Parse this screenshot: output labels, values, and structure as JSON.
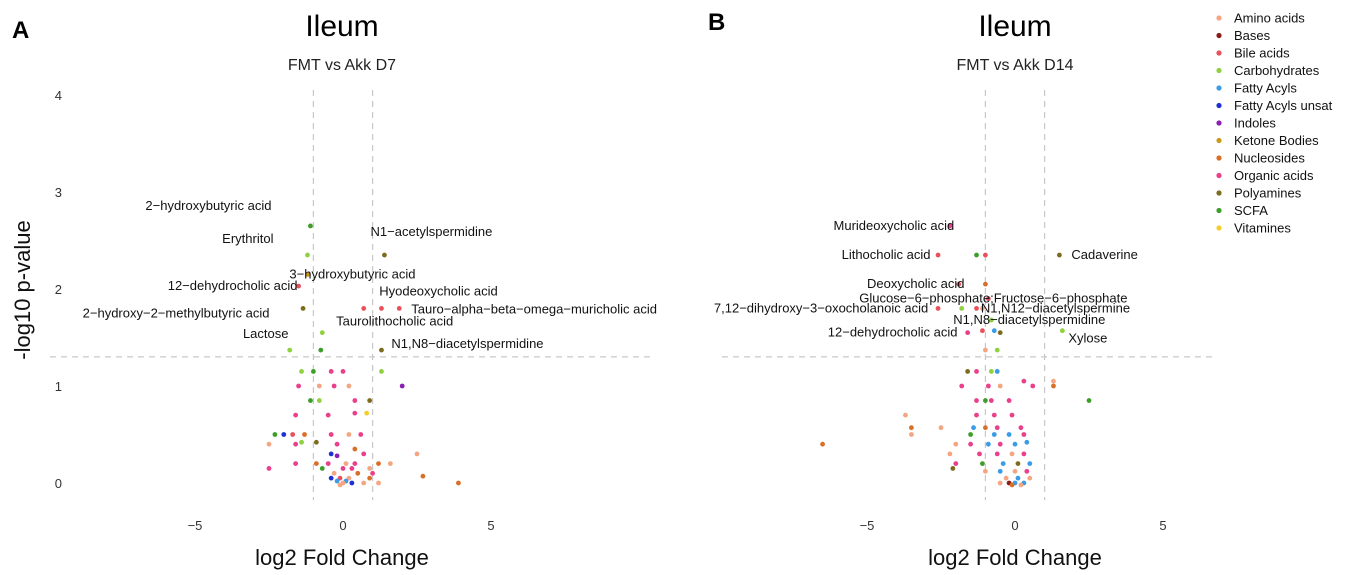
{
  "legend": [
    {
      "name": "Amino acids",
      "color": "#f4a582"
    },
    {
      "name": "Bases",
      "color": "#8b1a1a"
    },
    {
      "name": "Bile acids",
      "color": "#e8505b"
    },
    {
      "name": "Carbohydrates",
      "color": "#8fd13f"
    },
    {
      "name": "Fatty Acyls",
      "color": "#3a9be6"
    },
    {
      "name": "Fatty Acyls unsat",
      "color": "#1f2fd6"
    },
    {
      "name": "Indoles",
      "color": "#8a1fb5"
    },
    {
      "name": "Ketone Bodies",
      "color": "#c99a1c"
    },
    {
      "name": "Nucleosides",
      "color": "#d9702a"
    },
    {
      "name": "Organic acids",
      "color": "#ea3f8b"
    },
    {
      "name": "Polyamines",
      "color": "#7c6c1d"
    },
    {
      "name": "SCFA",
      "color": "#3e9e2a"
    },
    {
      "name": "Vitamines",
      "color": "#f2cf2a"
    }
  ],
  "chart_data": [
    {
      "panel": "A",
      "type": "scatter",
      "title": "Ileum",
      "subtitle": "FMT vs Akk D7",
      "xlabel": "log2 Fold Change",
      "ylabel": "-log10 p-value",
      "xlim": [
        -10,
        10
      ],
      "ylim": [
        -0.2,
        4.2
      ],
      "xticks": [
        -5,
        0,
        5
      ],
      "yticks": [
        0,
        1,
        2,
        3,
        4
      ],
      "vlines": [
        -1,
        1
      ],
      "hline": 1.3,
      "points": [
        {
          "x": -1.1,
          "y": 2.65,
          "c": "SCFA",
          "label": "2-hydroxybutyric acid"
        },
        {
          "x": -1.2,
          "y": 2.35,
          "c": "Carbohydrates",
          "label": "Erythritol"
        },
        {
          "x": -1.2,
          "y": 2.15,
          "c": "Ketone Bodies",
          "label": "3-hydroxybutyric acid"
        },
        {
          "x": -1.5,
          "y": 2.03,
          "c": "Bile acids",
          "label": "12-dehydrocholic acid"
        },
        {
          "x": -1.35,
          "y": 1.8,
          "c": "Polyamines",
          "label": "2-hydroxy-2-methylbutyric acid"
        },
        {
          "x": -1.8,
          "y": 1.37,
          "c": "Carbohydrates",
          "label": "Lactose"
        },
        {
          "x": 1.4,
          "y": 2.35,
          "c": "Polyamines",
          "label": "N1-acetylspermidine"
        },
        {
          "x": 1.3,
          "y": 1.8,
          "c": "Bile acids",
          "label": "Hyodeoxycholic acid"
        },
        {
          "x": 1.9,
          "y": 1.8,
          "c": "Bile acids",
          "label": "Tauro-alpha-beta-omega-muricholic acid"
        },
        {
          "x": 0.7,
          "y": 1.8,
          "c": "Bile acids",
          "label": "Taurolithocholic acid"
        },
        {
          "x": 1.3,
          "y": 1.37,
          "c": "Polyamines",
          "label": "N1,N8-diacetylspermidine"
        },
        {
          "x": -0.7,
          "y": 1.55,
          "c": "Carbohydrates"
        },
        {
          "x": -0.75,
          "y": 1.37,
          "c": "SCFA"
        },
        {
          "x": 2.0,
          "y": 1.0,
          "c": "Indoles"
        },
        {
          "x": -1.4,
          "y": 1.15,
          "c": "Carbohydrates"
        },
        {
          "x": -1.0,
          "y": 1.15,
          "c": "SCFA"
        },
        {
          "x": -0.4,
          "y": 1.15,
          "c": "Organic acids"
        },
        {
          "x": 0.0,
          "y": 1.15,
          "c": "Organic acids"
        },
        {
          "x": 1.3,
          "y": 1.15,
          "c": "Carbohydrates"
        },
        {
          "x": -1.5,
          "y": 1.0,
          "c": "Organic acids"
        },
        {
          "x": -0.8,
          "y": 1.0,
          "c": "Amino acids"
        },
        {
          "x": -0.3,
          "y": 1.0,
          "c": "Organic acids"
        },
        {
          "x": 0.2,
          "y": 1.0,
          "c": "Amino acids"
        },
        {
          "x": -1.1,
          "y": 0.85,
          "c": "SCFA"
        },
        {
          "x": -0.8,
          "y": 0.85,
          "c": "Carbohydrates"
        },
        {
          "x": 0.4,
          "y": 0.85,
          "c": "Organic acids"
        },
        {
          "x": 0.9,
          "y": 0.85,
          "c": "Polyamines"
        },
        {
          "x": -1.6,
          "y": 0.7,
          "c": "Organic acids"
        },
        {
          "x": -0.5,
          "y": 0.7,
          "c": "Organic acids"
        },
        {
          "x": 0.4,
          "y": 0.72,
          "c": "Organic acids"
        },
        {
          "x": 0.8,
          "y": 0.72,
          "c": "Vitamines"
        },
        {
          "x": -1.3,
          "y": 0.5,
          "c": "Nucleosides"
        },
        {
          "x": -0.4,
          "y": 0.5,
          "c": "Organic acids"
        },
        {
          "x": 0.2,
          "y": 0.5,
          "c": "Amino acids"
        },
        {
          "x": 0.6,
          "y": 0.5,
          "c": "Organic acids"
        },
        {
          "x": -2.3,
          "y": 0.5,
          "c": "SCFA"
        },
        {
          "x": -2.0,
          "y": 0.5,
          "c": "Fatty Acyls unsat"
        },
        {
          "x": -1.7,
          "y": 0.5,
          "c": "Bile acids"
        },
        {
          "x": -1.4,
          "y": 0.42,
          "c": "Carbohydrates"
        },
        {
          "x": -0.9,
          "y": 0.42,
          "c": "Polyamines"
        },
        {
          "x": -1.6,
          "y": 0.4,
          "c": "Organic acids"
        },
        {
          "x": -2.5,
          "y": 0.4,
          "c": "Amino acids"
        },
        {
          "x": -0.2,
          "y": 0.4,
          "c": "Organic acids"
        },
        {
          "x": 0.4,
          "y": 0.35,
          "c": "Nucleosides"
        },
        {
          "x": -0.4,
          "y": 0.3,
          "c": "Fatty Acyls unsat"
        },
        {
          "x": -0.2,
          "y": 0.28,
          "c": "Indoles"
        },
        {
          "x": 0.7,
          "y": 0.3,
          "c": "Organic acids"
        },
        {
          "x": 2.5,
          "y": 0.3,
          "c": "Amino acids"
        },
        {
          "x": -1.6,
          "y": 0.2,
          "c": "Organic acids"
        },
        {
          "x": -0.9,
          "y": 0.2,
          "c": "Nucleosides"
        },
        {
          "x": -0.5,
          "y": 0.2,
          "c": "Organic acids"
        },
        {
          "x": 0.1,
          "y": 0.2,
          "c": "Amino acids"
        },
        {
          "x": 0.4,
          "y": 0.2,
          "c": "Organic acids"
        },
        {
          "x": 1.2,
          "y": 0.2,
          "c": "Nucleosides"
        },
        {
          "x": 1.6,
          "y": 0.2,
          "c": "Amino acids"
        },
        {
          "x": -2.5,
          "y": 0.15,
          "c": "Organic acids"
        },
        {
          "x": -0.7,
          "y": 0.15,
          "c": "SCFA"
        },
        {
          "x": 0.0,
          "y": 0.15,
          "c": "Organic acids"
        },
        {
          "x": 0.3,
          "y": 0.15,
          "c": "Organic acids"
        },
        {
          "x": 0.9,
          "y": 0.15,
          "c": "Amino acids"
        },
        {
          "x": -0.3,
          "y": 0.1,
          "c": "Amino acids"
        },
        {
          "x": 0.5,
          "y": 0.1,
          "c": "Nucleosides"
        },
        {
          "x": 1.0,
          "y": 0.1,
          "c": "Organic acids"
        },
        {
          "x": -0.4,
          "y": 0.05,
          "c": "Fatty Acyls unsat"
        },
        {
          "x": -0.1,
          "y": 0.05,
          "c": "Bile acids"
        },
        {
          "x": 0.2,
          "y": 0.05,
          "c": "Amino acids"
        },
        {
          "x": -0.2,
          "y": 0.02,
          "c": "Fatty Acyls"
        },
        {
          "x": 0.1,
          "y": 0.02,
          "c": "Fatty Acyls"
        },
        {
          "x": 0.3,
          "y": 0.0,
          "c": "Fatty Acyls unsat"
        },
        {
          "x": 0.0,
          "y": 0.0,
          "c": "Amino acids"
        },
        {
          "x": -0.1,
          "y": -0.02,
          "c": "Amino acids"
        },
        {
          "x": 0.7,
          "y": 0.0,
          "c": "Amino acids"
        },
        {
          "x": 0.9,
          "y": 0.05,
          "c": "Nucleosides"
        },
        {
          "x": 1.2,
          "y": 0.0,
          "c": "Amino acids"
        },
        {
          "x": 2.7,
          "y": 0.07,
          "c": "Nucleosides"
        },
        {
          "x": 3.9,
          "y": 0.0,
          "c": "Nucleosides"
        }
      ]
    },
    {
      "panel": "B",
      "type": "scatter",
      "title": "Ileum",
      "subtitle": "FMT vs Akk D14",
      "xlabel": "log2 Fold Change",
      "ylabel": "",
      "xlim": [
        -10,
        10
      ],
      "ylim": [
        -0.2,
        4.2
      ],
      "xticks": [
        -5,
        0,
        5
      ],
      "yticks": [
        0,
        1,
        2,
        3,
        4
      ],
      "vlines": [
        -1,
        1
      ],
      "hline": 1.3,
      "points": [
        {
          "x": -2.2,
          "y": 2.65,
          "c": "Organic acids",
          "label": "Murideoxycholic acid"
        },
        {
          "x": -2.6,
          "y": 2.35,
          "c": "Bile acids",
          "label": "Lithocholic acid"
        },
        {
          "x": -1.9,
          "y": 2.05,
          "c": "Bile acids",
          "label": "Deoxycholic acid"
        },
        {
          "x": -0.9,
          "y": 1.9,
          "c": "Bile acids",
          "label": "Glucose-6-phosphate;Fructose-6-phosphate"
        },
        {
          "x": -2.6,
          "y": 1.8,
          "c": "Bile acids",
          "label": "7,12-dihydroxy-3-oxocholanoic acid"
        },
        {
          "x": -1.1,
          "y": 1.8,
          "c": "Amino acids",
          "label": "N1,N12-diacetylspermine"
        },
        {
          "x": -0.8,
          "y": 1.68,
          "c": "Carbohydrates",
          "label": "N1,N8-diacetylspermidine"
        },
        {
          "x": -1.6,
          "y": 1.55,
          "c": "Organic acids",
          "label": "12-dehydrocholic acid"
        },
        {
          "x": 1.5,
          "y": 2.35,
          "c": "Polyamines",
          "label": "Cadaverine"
        },
        {
          "x": 1.6,
          "y": 1.57,
          "c": "Carbohydrates",
          "label": "Xylose"
        },
        {
          "x": -1.3,
          "y": 2.35,
          "c": "SCFA"
        },
        {
          "x": -1.0,
          "y": 2.35,
          "c": "Bile acids"
        },
        {
          "x": -1.0,
          "y": 2.05,
          "c": "Nucleosides"
        },
        {
          "x": -1.8,
          "y": 1.8,
          "c": "Carbohydrates"
        },
        {
          "x": -1.3,
          "y": 1.8,
          "c": "Bile acids"
        },
        {
          "x": -0.7,
          "y": 1.57,
          "c": "Fatty Acyls"
        },
        {
          "x": -1.1,
          "y": 1.57,
          "c": "Bile acids"
        },
        {
          "x": -0.5,
          "y": 1.55,
          "c": "Polyamines"
        },
        {
          "x": -1.0,
          "y": 1.37,
          "c": "Amino acids"
        },
        {
          "x": -0.6,
          "y": 1.37,
          "c": "Carbohydrates"
        },
        {
          "x": -1.6,
          "y": 1.15,
          "c": "Polyamines"
        },
        {
          "x": -1.3,
          "y": 1.15,
          "c": "Organic acids"
        },
        {
          "x": -0.8,
          "y": 1.15,
          "c": "Carbohydrates"
        },
        {
          "x": -0.6,
          "y": 1.15,
          "c": "Fatty Acyls"
        },
        {
          "x": -0.9,
          "y": 1.0,
          "c": "Organic acids"
        },
        {
          "x": -0.5,
          "y": 1.0,
          "c": "Amino acids"
        },
        {
          "x": 0.3,
          "y": 1.05,
          "c": "Organic acids"
        },
        {
          "x": 0.6,
          "y": 1.0,
          "c": "Organic acids"
        },
        {
          "x": 1.3,
          "y": 1.0,
          "c": "Nucleosides"
        },
        {
          "x": 1.3,
          "y": 1.05,
          "c": "Amino acids"
        },
        {
          "x": -1.8,
          "y": 1.0,
          "c": "Organic acids"
        },
        {
          "x": -1.3,
          "y": 0.85,
          "c": "Organic acids"
        },
        {
          "x": -1.0,
          "y": 0.85,
          "c": "SCFA"
        },
        {
          "x": -0.8,
          "y": 0.85,
          "c": "Organic acids"
        },
        {
          "x": -0.2,
          "y": 0.85,
          "c": "Organic acids"
        },
        {
          "x": 2.5,
          "y": 0.85,
          "c": "SCFA"
        },
        {
          "x": -1.3,
          "y": 0.7,
          "c": "Organic acids"
        },
        {
          "x": -0.7,
          "y": 0.7,
          "c": "Organic acids"
        },
        {
          "x": -0.1,
          "y": 0.7,
          "c": "Organic acids"
        },
        {
          "x": -3.7,
          "y": 0.7,
          "c": "Amino acids"
        },
        {
          "x": -3.5,
          "y": 0.57,
          "c": "Nucleosides"
        },
        {
          "x": -2.5,
          "y": 0.57,
          "c": "Amino acids"
        },
        {
          "x": -1.4,
          "y": 0.57,
          "c": "Fatty Acyls"
        },
        {
          "x": -1.0,
          "y": 0.57,
          "c": "Nucleosides"
        },
        {
          "x": -0.6,
          "y": 0.57,
          "c": "Organic acids"
        },
        {
          "x": 0.2,
          "y": 0.57,
          "c": "Organic acids"
        },
        {
          "x": -3.5,
          "y": 0.5,
          "c": "Amino acids"
        },
        {
          "x": -1.5,
          "y": 0.5,
          "c": "SCFA"
        },
        {
          "x": -0.7,
          "y": 0.5,
          "c": "Fatty Acyls"
        },
        {
          "x": -0.2,
          "y": 0.5,
          "c": "Fatty Acyls"
        },
        {
          "x": 0.3,
          "y": 0.5,
          "c": "Organic acids"
        },
        {
          "x": -2.0,
          "y": 0.4,
          "c": "Amino acids"
        },
        {
          "x": -1.5,
          "y": 0.4,
          "c": "Organic acids"
        },
        {
          "x": -0.9,
          "y": 0.4,
          "c": "Fatty Acyls"
        },
        {
          "x": -0.5,
          "y": 0.4,
          "c": "Organic acids"
        },
        {
          "x": 0.0,
          "y": 0.4,
          "c": "Fatty Acyls"
        },
        {
          "x": 0.4,
          "y": 0.42,
          "c": "Fatty Acyls"
        },
        {
          "x": -6.5,
          "y": 0.4,
          "c": "Nucleosides"
        },
        {
          "x": -2.2,
          "y": 0.3,
          "c": "Amino acids"
        },
        {
          "x": -1.2,
          "y": 0.3,
          "c": "Organic acids"
        },
        {
          "x": -0.6,
          "y": 0.3,
          "c": "Organic acids"
        },
        {
          "x": -0.1,
          "y": 0.3,
          "c": "Amino acids"
        },
        {
          "x": 0.3,
          "y": 0.3,
          "c": "Organic acids"
        },
        {
          "x": -2.0,
          "y": 0.2,
          "c": "Organic acids"
        },
        {
          "x": -1.1,
          "y": 0.2,
          "c": "SCFA"
        },
        {
          "x": -0.4,
          "y": 0.2,
          "c": "Fatty Acyls"
        },
        {
          "x": 0.1,
          "y": 0.2,
          "c": "Polyamines"
        },
        {
          "x": 0.5,
          "y": 0.2,
          "c": "Fatty Acyls"
        },
        {
          "x": -1.0,
          "y": 0.12,
          "c": "Amino acids"
        },
        {
          "x": -0.5,
          "y": 0.12,
          "c": "Fatty Acyls"
        },
        {
          "x": 0.0,
          "y": 0.12,
          "c": "Amino acids"
        },
        {
          "x": 0.4,
          "y": 0.12,
          "c": "Organic acids"
        },
        {
          "x": -2.1,
          "y": 0.15,
          "c": "Polyamines"
        },
        {
          "x": -0.3,
          "y": 0.05,
          "c": "Amino acids"
        },
        {
          "x": 0.1,
          "y": 0.05,
          "c": "Fatty Acyls"
        },
        {
          "x": 0.5,
          "y": 0.05,
          "c": "Amino acids"
        },
        {
          "x": -0.5,
          "y": 0.0,
          "c": "Amino acids"
        },
        {
          "x": -0.2,
          "y": 0.0,
          "c": "Bases"
        },
        {
          "x": 0.0,
          "y": 0.0,
          "c": "Fatty Acyls"
        },
        {
          "x": 0.3,
          "y": 0.0,
          "c": "Fatty Acyls"
        },
        {
          "x": -0.1,
          "y": -0.02,
          "c": "Nucleosides"
        },
        {
          "x": 0.2,
          "y": -0.02,
          "c": "Amino acids"
        }
      ]
    }
  ]
}
